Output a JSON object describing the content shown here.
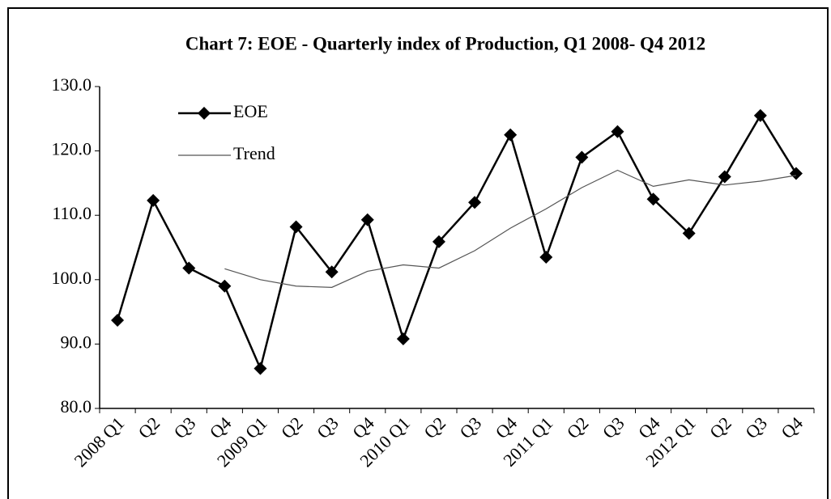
{
  "chart_data": {
    "type": "line",
    "title": "Chart 7: EOE - Quarterly index of Production, Q1 2008- Q4 2012",
    "categories": [
      "2008 Q1",
      "Q2",
      "Q3",
      "Q4",
      "2009 Q1",
      "Q2",
      "Q3",
      "Q4",
      "2010 Q1",
      "Q2",
      "Q3",
      "Q4",
      "2011 Q1",
      "Q2",
      "Q3",
      "Q4",
      "2012 Q1",
      "Q2",
      "Q3",
      "Q4"
    ],
    "series": [
      {
        "name": "EOE",
        "color": "#000000",
        "marker": "diamond",
        "values": [
          93.7,
          112.3,
          101.8,
          99.0,
          86.2,
          108.2,
          101.2,
          109.3,
          90.8,
          105.9,
          112.0,
          122.5,
          103.5,
          119.0,
          123.0,
          112.5,
          107.2,
          116.0,
          125.5,
          116.5
        ]
      },
      {
        "name": "Trend",
        "color": "#555555",
        "values": [
          null,
          null,
          null,
          101.7,
          100.0,
          99.0,
          98.8,
          101.3,
          102.3,
          101.8,
          104.5,
          108.0,
          111.0,
          114.3,
          117.0,
          114.5,
          115.5,
          114.7,
          115.3,
          116.2
        ]
      }
    ],
    "ylim": [
      80,
      130
    ],
    "yticks": [
      {
        "value": 80,
        "label": "80.0"
      },
      {
        "value": 90,
        "label": "90.0"
      },
      {
        "value": 100,
        "label": "100.0"
      },
      {
        "value": 110,
        "label": "110.0"
      },
      {
        "value": 120,
        "label": "120.0"
      },
      {
        "value": 130,
        "label": "130.0"
      }
    ],
    "legend": "top-left"
  }
}
